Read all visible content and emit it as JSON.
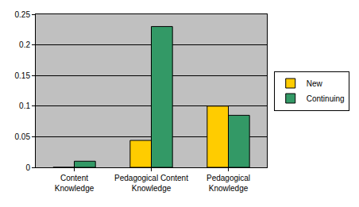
{
  "chart_data": {
    "type": "bar",
    "categories": [
      "Content Knowledge",
      "Pedagogical Content Knowledge",
      "Pedagogical Knowledge"
    ],
    "series": [
      {
        "name": "New",
        "color": "#FFCC00",
        "values": [
          0,
          0.044,
          0.1
        ]
      },
      {
        "name": "Continuing",
        "color": "#339966",
        "values": [
          0.01,
          0.23,
          0.085
        ]
      }
    ],
    "ylim": [
      0,
      0.25
    ],
    "yticks": [
      0,
      0.05,
      0.1,
      0.15,
      0.2,
      0.25
    ],
    "grid": true,
    "legend": "right"
  }
}
